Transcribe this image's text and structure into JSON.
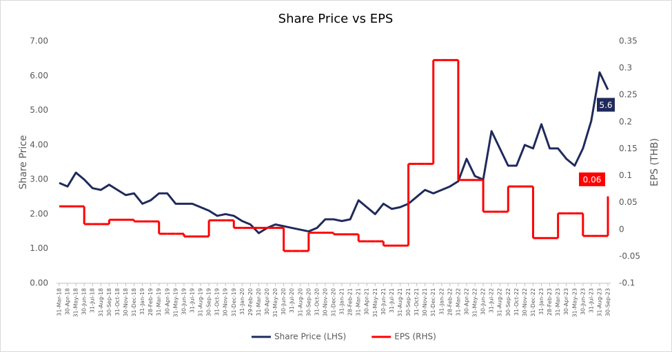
{
  "chart_data": {
    "type": "line",
    "title": "Share Price vs EPS",
    "ylabel": "Share Price",
    "y2label": "EPS (THB)",
    "categories": [
      "31-Mar-18",
      "30-Apr-18",
      "31-May-18",
      "30-Jun-18",
      "31-Jul-18",
      "31-Aug-18",
      "30-Sep-18",
      "31-Oct-18",
      "30-Nov-18",
      "31-Dec-18",
      "31-Jan-19",
      "28-Feb-19",
      "31-Mar-19",
      "30-Apr-19",
      "31-May-19",
      "30-Jun-19",
      "31-Jul-19",
      "31-Aug-19",
      "30-Sep-19",
      "31-Oct-19",
      "30-Nov-19",
      "31-Dec-19",
      "31-Jan-20",
      "29-Feb-20",
      "31-Mar-20",
      "30-Apr-20",
      "31-May-20",
      "30-Jun-20",
      "31-Jul-20",
      "31-Aug-20",
      "30-Sep-20",
      "31-Oct-20",
      "30-Nov-20",
      "31-Dec-20",
      "31-Jan-21",
      "28-Feb-21",
      "31-Mar-21",
      "30-Apr-21",
      "31-May-21",
      "30-Jun-21",
      "31-Jul-21",
      "31-Aug-21",
      "30-Sep-21",
      "31-Oct-21",
      "30-Nov-21",
      "31-Dec-21",
      "31-Jan-22",
      "28-Feb-22",
      "31-Mar-22",
      "30-Apr-22",
      "31-May-22",
      "30-Jun-22",
      "31-Jul-22",
      "31-Aug-22",
      "30-Sep-22",
      "31-Oct-22",
      "30-Nov-22",
      "31-Dec-22",
      "31-Jan-23",
      "28-Feb-23",
      "31-Mar-23",
      "30-Apr-23",
      "31-May-23",
      "30-Jun-23",
      "31-Jul-23",
      "31-Aug-23",
      "30-Sep-23"
    ],
    "series": [
      {
        "name": "Share Price (LHS)",
        "color": "#1f2a5c",
        "axis": "y",
        "values": [
          2.9,
          2.8,
          3.2,
          3.0,
          2.75,
          2.7,
          2.85,
          2.7,
          2.55,
          2.6,
          2.3,
          2.4,
          2.6,
          2.6,
          2.3,
          2.3,
          2.3,
          2.2,
          2.1,
          1.95,
          2.0,
          1.95,
          1.8,
          1.7,
          1.45,
          1.6,
          1.7,
          1.65,
          1.6,
          1.55,
          1.5,
          1.6,
          1.85,
          1.85,
          1.8,
          1.85,
          2.4,
          2.2,
          2.0,
          2.3,
          2.15,
          2.2,
          2.3,
          2.5,
          2.7,
          2.6,
          2.7,
          2.8,
          2.95,
          3.6,
          3.1,
          3.0,
          4.4,
          3.9,
          3.4,
          3.4,
          4.0,
          3.9,
          4.6,
          3.9,
          3.9,
          3.6,
          3.4,
          3.9,
          4.7,
          6.1,
          5.6
        ]
      },
      {
        "name": "EPS (RHS)",
        "color": "#ff0000",
        "axis": "y2",
        "values": [
          0.043,
          0.043,
          0.043,
          0.01,
          0.01,
          0.01,
          0.018,
          0.018,
          0.018,
          0.015,
          0.015,
          0.015,
          -0.008,
          -0.008,
          -0.008,
          -0.013,
          -0.013,
          -0.013,
          0.017,
          0.017,
          0.017,
          0.003,
          0.003,
          0.003,
          0.003,
          0.003,
          0.003,
          -0.04,
          -0.04,
          -0.04,
          -0.006,
          -0.006,
          -0.006,
          -0.009,
          -0.009,
          -0.009,
          -0.022,
          -0.022,
          -0.022,
          -0.03,
          -0.03,
          -0.03,
          0.122,
          0.122,
          0.122,
          0.315,
          0.315,
          0.315,
          0.092,
          0.092,
          0.092,
          0.033,
          0.033,
          0.033,
          0.08,
          0.08,
          0.08,
          -0.016,
          -0.016,
          -0.016,
          0.03,
          0.03,
          0.03,
          -0.012,
          -0.012,
          -0.012,
          0.06
        ]
      }
    ],
    "annotations": [
      {
        "text": "5.6",
        "series": 0,
        "color": "#1f2a5c"
      },
      {
        "text": "0.06",
        "series": 1,
        "color": "#ff0000"
      }
    ],
    "ylim": [
      0,
      7
    ],
    "yticks": [
      {
        "value": 0,
        "label": "0.00"
      },
      {
        "value": 1,
        "label": "1.00"
      },
      {
        "value": 2,
        "label": "2.00"
      },
      {
        "value": 3,
        "label": "3.00"
      },
      {
        "value": 4,
        "label": "4.00"
      },
      {
        "value": 5,
        "label": "5.00"
      },
      {
        "value": 6,
        "label": "6.00"
      },
      {
        "value": 7,
        "label": "7.00"
      }
    ],
    "y2lim": [
      -0.1,
      0.35
    ],
    "y2ticks": [
      -0.1,
      -0.05,
      0,
      0.05,
      0.1,
      0.15,
      0.2,
      0.25,
      0.3,
      0.35
    ],
    "grid": false,
    "legend": "bottom"
  }
}
